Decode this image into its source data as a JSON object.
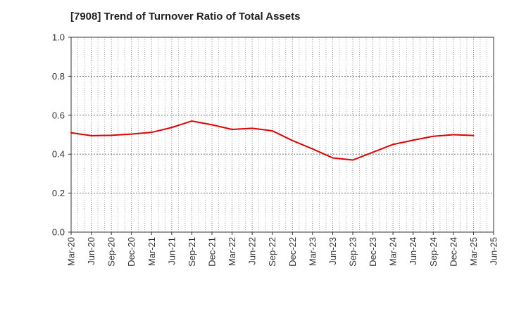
{
  "chart_data": {
    "type": "line",
    "title": "[7908]  Trend of Turnover Ratio of Total Assets",
    "xlabel": "",
    "ylabel": "",
    "ylim": [
      0.0,
      1.0
    ],
    "yticks": [
      "0.0",
      "0.2",
      "0.4",
      "0.6",
      "0.8",
      "1.0"
    ],
    "x_tick_labels": [
      "Mar-20",
      "Jun-20",
      "Sep-20",
      "Dec-20",
      "Mar-21",
      "Jun-21",
      "Sep-21",
      "Dec-21",
      "Mar-22",
      "Jun-22",
      "Sep-22",
      "Dec-22",
      "Mar-23",
      "Jun-23",
      "Sep-23",
      "Dec-23",
      "Mar-24",
      "Jun-24",
      "Sep-24",
      "Dec-24",
      "Mar-25",
      "Jun-25"
    ],
    "grid": true,
    "series": [
      {
        "color": "#e00000",
        "x": [
          "Mar-20",
          "Jun-20",
          "Sep-20",
          "Dec-20",
          "Mar-21",
          "Jun-21",
          "Sep-21",
          "Dec-21",
          "Mar-22",
          "Jun-22",
          "Sep-22",
          "Dec-22",
          "Mar-23",
          "Jun-23",
          "Sep-23",
          "Dec-23",
          "Mar-24",
          "Jun-24",
          "Sep-24",
          "Dec-24",
          "Mar-25"
        ],
        "values": [
          0.51,
          0.495,
          0.497,
          0.503,
          0.512,
          0.537,
          0.57,
          0.551,
          0.527,
          0.533,
          0.52,
          0.47,
          0.427,
          0.381,
          0.37,
          0.41,
          0.45,
          0.472,
          0.492,
          0.5,
          0.496
        ]
      }
    ]
  }
}
